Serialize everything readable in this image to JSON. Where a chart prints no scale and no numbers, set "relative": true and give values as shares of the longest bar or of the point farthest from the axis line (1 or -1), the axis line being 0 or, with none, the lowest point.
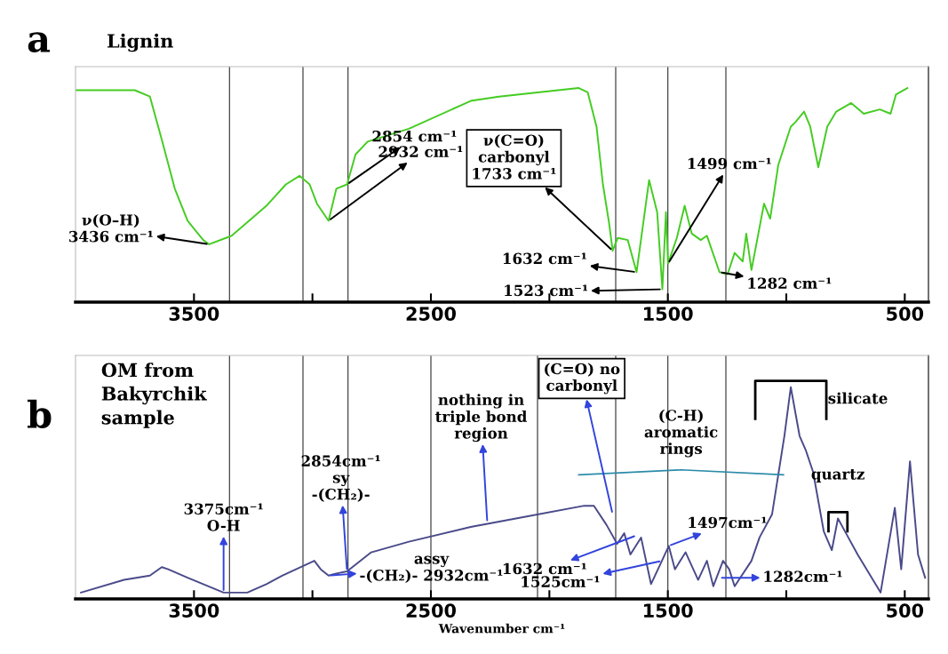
{
  "chart_data": [
    {
      "type": "line",
      "title": "Lignin",
      "relative": true,
      "tick_labels": "x",
      "grid": false,
      "xlim": [
        4000,
        400
      ],
      "xticks": [
        3500,
        {
          "value": 3000,
          "label": null
        },
        2500,
        {
          "value": 2000,
          "label": null
        },
        1500,
        {
          "value": 1000,
          "label": null
        },
        500
      ],
      "series": [
        {
          "color": "#44cc22",
          "x": [
            4000,
            3750,
            3686,
            3636,
            3581,
            3527,
            3461,
            3436,
            3341,
            3194,
            3112,
            3054,
            3012,
            2981,
            2932,
            2899,
            2854,
            2818,
            2767,
            2593,
            2332,
            2213,
            1876,
            1838,
            1801,
            1774,
            1748,
            1733,
            1711,
            1669,
            1632,
            1579,
            1545,
            1523,
            1508,
            1499,
            1462,
            1429,
            1399,
            1361,
            1335,
            1282,
            1248,
            1218,
            1184,
            1169,
            1147,
            1094,
            1068,
            1034,
            981,
            962,
            925,
            899,
            865,
            827,
            789,
            726,
            673,
            605,
            560,
            537,
            489
          ],
          "values": [
            0.99,
            0.99,
            0.96,
            0.76,
            0.53,
            0.38,
            0.29,
            0.27,
            0.31,
            0.45,
            0.55,
            0.59,
            0.55,
            0.46,
            0.38,
            0.53,
            0.55,
            0.69,
            0.75,
            0.81,
            0.94,
            0.96,
            1.0,
            0.98,
            0.82,
            0.55,
            0.37,
            0.24,
            0.3,
            0.29,
            0.14,
            0.57,
            0.42,
            0.06,
            0.42,
            0.18,
            0.3,
            0.45,
            0.32,
            0.29,
            0.31,
            0.14,
            0.13,
            0.23,
            0.19,
            0.32,
            0.15,
            0.46,
            0.39,
            0.64,
            0.82,
            0.84,
            0.89,
            0.82,
            0.63,
            0.82,
            0.89,
            0.93,
            0.88,
            0.9,
            0.88,
            0.97,
            1.0
          ]
        }
      ],
      "ref_lines": [
        {
          "axis": "x",
          "value": 3350
        },
        {
          "axis": "x",
          "value": 3040
        },
        {
          "axis": "x",
          "value": 2850
        },
        {
          "axis": "x",
          "value": 1720
        },
        {
          "axis": "x",
          "value": 1500
        },
        {
          "axis": "x",
          "value": 1255
        }
      ],
      "annotations": [
        "a",
        {
          "text": "ν(O–H)\n3436 cm⁻¹",
          "x": 3436,
          "y": 0.27
        },
        {
          "text": "2854 cm⁻¹",
          "x": 2854,
          "y": 0.55
        },
        {
          "text": "2932 cm⁻¹",
          "x": 2932,
          "y": 0.38
        },
        {
          "text": "ν(C=O)\ncarbonyl\n1733 cm⁻¹",
          "x": 1733,
          "y": 0.24
        },
        {
          "text": "1632 cm⁻¹",
          "x": 1632,
          "y": 0.14
        },
        {
          "text": "1523 cm⁻¹",
          "x": 1523,
          "y": 0.06
        },
        {
          "text": "1499 cm⁻¹",
          "x": 1499,
          "y": 0.18
        },
        {
          "text": "1282 cm⁻¹",
          "x": 1282,
          "y": 0.14
        }
      ]
    },
    {
      "type": "line",
      "title": "OM from\nBakyrchik\nsample",
      "xlabel": "Wavenumber cm⁻¹",
      "relative": true,
      "tick_labels": "x",
      "grid": false,
      "xlim": [
        4000,
        400
      ],
      "xticks": [
        3500,
        {
          "value": 3000,
          "label": null
        },
        2500,
        {
          "value": 2000,
          "label": null
        },
        1500,
        {
          "value": 1000,
          "label": null
        },
        500
      ],
      "series": [
        {
          "color": "#4a4a8a",
          "x": [
            3977,
            3795,
            3686,
            3636,
            3609,
            3527,
            3375,
            3275,
            3194,
            3128,
            2992,
            2965,
            2932,
            2899,
            2854,
            2752,
            2593,
            2332,
            2091,
            1853,
            1812,
            1759,
            1714,
            1684,
            1658,
            1613,
            1571,
            1525,
            1496,
            1470,
            1425,
            1372,
            1335,
            1308,
            1267,
            1241,
            1218,
            1147,
            1113,
            1060,
            1008,
            981,
            944,
            917,
            887,
            842,
            808,
            782,
            748,
            699,
            602,
            542,
            515,
            478,
            444,
            414
          ],
          "values": [
            0.03,
            0.09,
            0.11,
            0.15,
            0.14,
            0.1,
            0.03,
            0.03,
            0.07,
            0.11,
            0.18,
            0.14,
            0.11,
            0.12,
            0.13,
            0.22,
            0.27,
            0.34,
            0.39,
            0.44,
            0.44,
            0.35,
            0.26,
            0.31,
            0.21,
            0.29,
            0.07,
            0.18,
            0.25,
            0.14,
            0.22,
            0.09,
            0.18,
            0.06,
            0.18,
            0.14,
            0.06,
            0.18,
            0.29,
            0.4,
            0.77,
            1.0,
            0.77,
            0.7,
            0.6,
            0.32,
            0.23,
            0.38,
            0.31,
            0.21,
            0.03,
            0.43,
            0.14,
            0.65,
            0.21,
            0.1
          ]
        }
      ],
      "ref_lines": [
        {
          "axis": "x",
          "value": 3350
        },
        {
          "axis": "x",
          "value": 3040
        },
        {
          "axis": "x",
          "value": 2850
        },
        {
          "axis": "x",
          "value": 2500
        },
        {
          "axis": "x",
          "value": 2050
        },
        {
          "axis": "x",
          "value": 1720
        },
        {
          "axis": "x",
          "value": 1500
        },
        {
          "axis": "x",
          "value": 1255
        }
      ],
      "annotations": [
        "b",
        {
          "text": "3375cm⁻¹\nO-H",
          "x": 3375,
          "y": 0.03
        },
        {
          "text": "2854cm⁻¹\nsy\n-(CH₂)-",
          "x": 2854,
          "y": 0.13
        },
        {
          "text": "assy\n-(CH₂)- 2932cm⁻¹",
          "x": 2932,
          "y": 0.11
        },
        {
          "text": "nothing in\ntriple bond\nregion",
          "x": 2262,
          "y": 0.36
        },
        {
          "text": "(C=O) no\ncarbonyl",
          "x": 1733,
          "y": 0.4
        },
        "(C-H)\naromatic\nrings",
        {
          "text": "1632 cm⁻¹",
          "x": 1632,
          "y": 0.3
        },
        {
          "text": "1525cm⁻¹",
          "x": 1525,
          "y": 0.18
        },
        {
          "text": "1497cm⁻¹",
          "x": 1497,
          "y": 0.25
        },
        {
          "text": "1282cm⁻¹",
          "x": 1282,
          "y": 0.1
        },
        {
          "text": "silicate",
          "x": 981,
          "y": 1.0
        },
        {
          "text": "quartz",
          "x": 782,
          "y": 0.38
        }
      ]
    }
  ]
}
